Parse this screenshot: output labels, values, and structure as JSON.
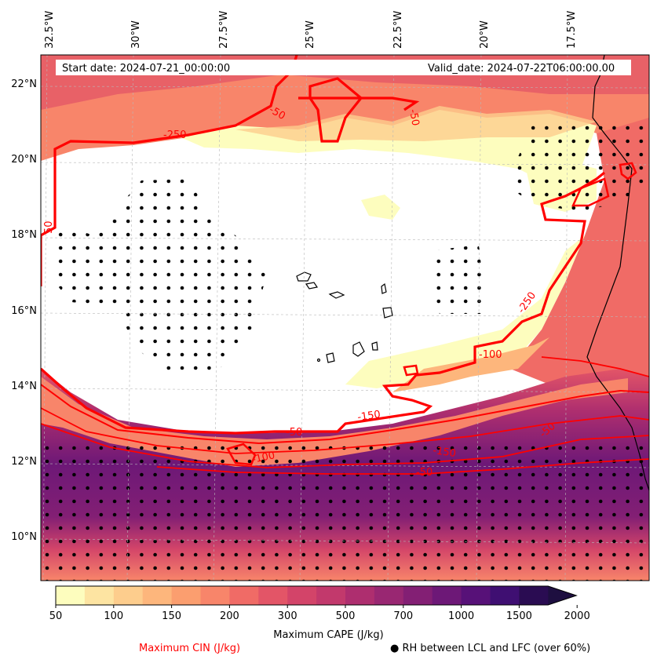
{
  "header": {
    "start_date": "Start date: 2024-07-21_00:00:00",
    "valid_date": "Valid_date: 2024-07-22T06:00:00.00"
  },
  "axes": {
    "lon_labels": [
      "32.5°W",
      "30°W",
      "27.5°W",
      "25°W",
      "22.5°W",
      "20°W",
      "17.5°W"
    ],
    "lat_labels": [
      "22°N",
      "20°N",
      "18°N",
      "16°N",
      "14°N",
      "12°N",
      "10°N"
    ]
  },
  "cin_contours": {
    "labels": [
      "-250",
      "-50",
      "-50",
      "50",
      "-250",
      "-100",
      "-150",
      "-50",
      "-100",
      "-150",
      "-50",
      "-50"
    ]
  },
  "colorbar": {
    "ticks": [
      "50",
      "100",
      "150",
      "200",
      "300",
      "500",
      "700",
      "1000",
      "1500",
      "2000"
    ],
    "colors": [
      "#fdfdbe",
      "#fde4a2",
      "#fdcd8d",
      "#fdb67c",
      "#fb9e6f",
      "#f8856a",
      "#f06b66",
      "#e35567",
      "#d34469",
      "#c2396c",
      "#ae2e6f",
      "#992772",
      "#831f74",
      "#6d1877",
      "#571178",
      "#3f0f72",
      "#2a0c52"
    ],
    "label": "Maximum CAPE (J/kg)"
  },
  "legend": {
    "cin": "Maximum CIN (J/kg)",
    "rh": "● RH between LCL and LFC (over 60%)"
  }
}
